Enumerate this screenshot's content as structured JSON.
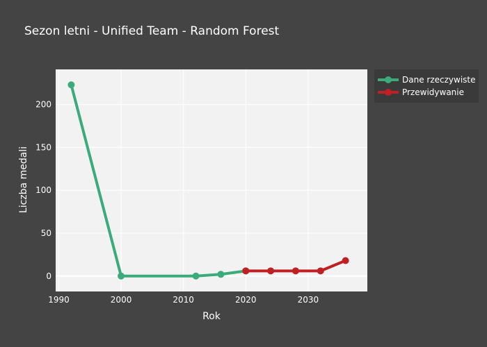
{
  "chart_data": {
    "type": "line",
    "title": "Sezon letni - Unified Team - Random Forest",
    "xlabel": "Rok",
    "ylabel": "Liczba medali",
    "xlim": [
      1989.5,
      2039.5
    ],
    "ylim": [
      -18,
      241
    ],
    "x_ticks": [
      1990,
      2000,
      2010,
      2020,
      2030
    ],
    "y_ticks": [
      0,
      50,
      100,
      150,
      200
    ],
    "grid": true,
    "legend": "top-right, outside plot",
    "series": [
      {
        "name": "Dane rzeczywiste",
        "color": "#3cab7b",
        "x": [
          1992,
          2000,
          2012,
          2016,
          2020
        ],
        "y": [
          223,
          0,
          0,
          2,
          6
        ]
      },
      {
        "name": "Przewidywanie",
        "color": "#c01f24",
        "x": [
          2020,
          2024,
          2028,
          2032,
          2036
        ],
        "y": [
          6,
          6,
          6,
          6,
          18
        ]
      }
    ]
  }
}
